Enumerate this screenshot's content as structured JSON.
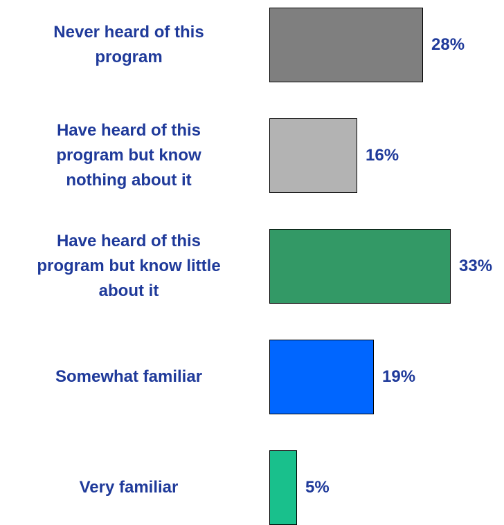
{
  "chart_data": {
    "type": "bar",
    "orientation": "horizontal",
    "categories": [
      "Never heard of this\nprogram",
      "Have heard of this\nprogram but know\nnothing about it",
      "Have heard of this\nprogram but know little\nabout it",
      "Somewhat familiar",
      "Very familiar"
    ],
    "values": [
      28,
      16,
      33,
      19,
      5
    ],
    "value_labels": [
      "28%",
      "16%",
      "33%",
      "19%",
      "5%"
    ],
    "bar_colors": [
      "#7f7f7f",
      "#b3b3b3",
      "#339966",
      "#0066ff",
      "#19c08c"
    ],
    "label_color": "#1f3a9a",
    "xlim": [
      0,
      33
    ],
    "grid": false,
    "legend": "none",
    "title": "",
    "xlabel": "",
    "ylabel": ""
  }
}
